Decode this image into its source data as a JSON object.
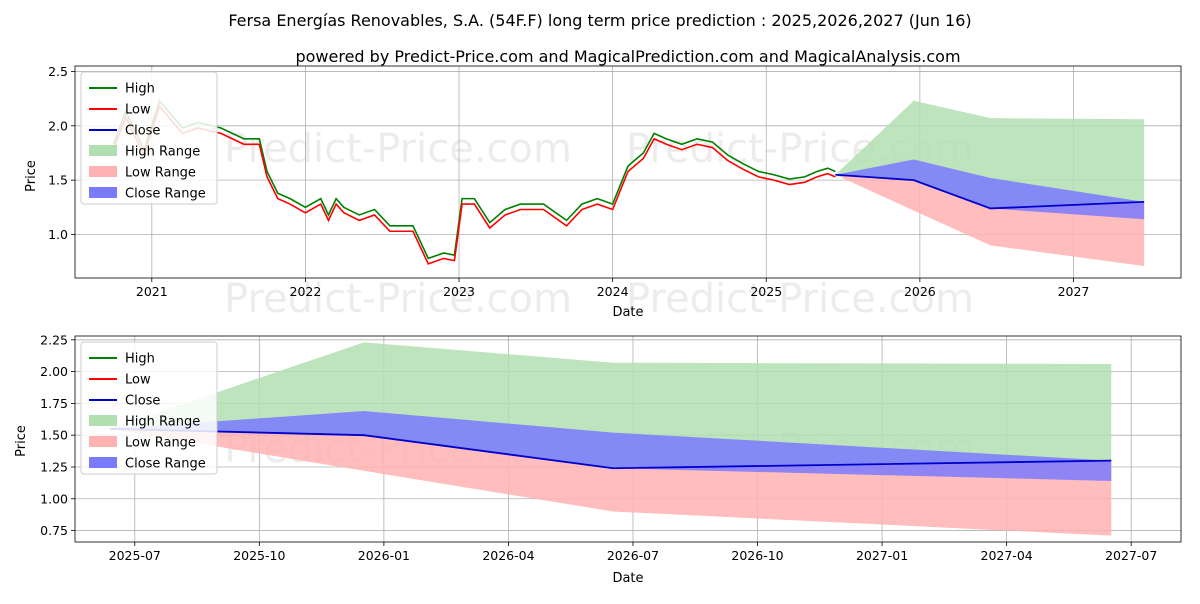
{
  "header": {
    "title": "Fersa Energías Renovables, S.A. (54F.F) long term price prediction : 2025,2026,2027 (Jun 16)",
    "subtitle": "powered by Predict-Price.com and MagicalPrediction.com and MagicalAnalysis.com"
  },
  "watermark": "Predict-Price.com",
  "legend": [
    "High",
    "Low",
    "Close",
    "High Range",
    "Low Range",
    "Close Range"
  ],
  "colors": {
    "high": "#008000",
    "low": "#ff0000",
    "close": "#0000cd",
    "high_range": "#b2dfb2",
    "low_range": "#ffb2b2",
    "close_range": "#7a7aff"
  },
  "chart_data": [
    {
      "type": "line",
      "title": "",
      "xlabel": "Date",
      "ylabel": "Price",
      "xlim": [
        2020.5,
        2027.7
      ],
      "ylim": [
        0.6,
        2.55
      ],
      "xticks": [
        2021,
        2022,
        2023,
        2024,
        2025,
        2026,
        2027
      ],
      "xtick_labels": [
        "2021",
        "2022",
        "2023",
        "2024",
        "2025",
        "2026",
        "2027"
      ],
      "yticks": [
        1.0,
        1.5,
        2.0,
        2.5
      ],
      "ytick_labels": [
        "1.0",
        "1.5",
        "2.0",
        "2.5"
      ],
      "grid": true,
      "legend_loc": "upper-left",
      "history": {
        "x": [
          2020.75,
          2020.83,
          2020.95,
          2021.05,
          2021.2,
          2021.3,
          2021.45,
          2021.6,
          2021.7,
          2021.75,
          2021.82,
          2021.9,
          2022.0,
          2022.1,
          2022.15,
          2022.2,
          2022.25,
          2022.35,
          2022.45,
          2022.55,
          2022.7,
          2022.8,
          2022.9,
          2022.97,
          2023.02,
          2023.1,
          2023.2,
          2023.3,
          2023.4,
          2023.55,
          2023.7,
          2023.8,
          2023.9,
          2024.0,
          2024.1,
          2024.2,
          2024.27,
          2024.35,
          2024.45,
          2024.55,
          2024.65,
          2024.75,
          2024.85,
          2024.95,
          2025.05,
          2025.15,
          2025.25,
          2025.33,
          2025.4,
          2025.45
        ],
        "close": [
          1.8,
          2.1,
          1.75,
          2.2,
          1.95,
          2.0,
          1.95,
          1.85,
          1.85,
          1.55,
          1.35,
          1.3,
          1.22,
          1.3,
          1.15,
          1.3,
          1.22,
          1.15,
          1.2,
          1.05,
          1.05,
          0.75,
          0.8,
          0.78,
          1.3,
          1.3,
          1.08,
          1.2,
          1.25,
          1.25,
          1.1,
          1.25,
          1.3,
          1.25,
          1.6,
          1.72,
          1.9,
          1.85,
          1.8,
          1.85,
          1.82,
          1.7,
          1.62,
          1.55,
          1.52,
          1.48,
          1.5,
          1.55,
          1.58,
          1.55
        ]
      },
      "forecast": {
        "x": [
          2025.45,
          2025.96,
          2026.46,
          2027.46
        ],
        "close": [
          1.55,
          1.5,
          1.24,
          1.3
        ],
        "high_range": [
          [
            1.55,
            1.55
          ],
          [
            1.5,
            2.23
          ],
          [
            1.24,
            2.07
          ],
          [
            1.3,
            2.06
          ]
        ],
        "low_range": [
          [
            1.55,
            1.55
          ],
          [
            1.22,
            1.5
          ],
          [
            0.9,
            1.24
          ],
          [
            0.71,
            1.3
          ]
        ],
        "close_range": [
          [
            1.55,
            1.55
          ],
          [
            1.5,
            1.69
          ],
          [
            1.24,
            1.52
          ],
          [
            1.14,
            1.3
          ]
        ]
      }
    },
    {
      "type": "line",
      "title": "",
      "xlabel": "Date",
      "ylabel": "Price",
      "xlim": [
        2025.38,
        2027.6
      ],
      "ylim": [
        0.66,
        2.28
      ],
      "xticks": [
        2025.5,
        2025.75,
        2026.0,
        2026.25,
        2026.5,
        2026.75,
        2027.0,
        2027.25,
        2027.5
      ],
      "xtick_labels": [
        "2025-07",
        "2025-10",
        "2026-01",
        "2026-04",
        "2026-07",
        "2026-10",
        "2027-01",
        "2027-04",
        "2027-07"
      ],
      "yticks": [
        0.75,
        1.0,
        1.25,
        1.5,
        1.75,
        2.0,
        2.25
      ],
      "ytick_labels": [
        "0.75",
        "1.00",
        "1.25",
        "1.50",
        "1.75",
        "2.00",
        "2.25"
      ],
      "grid": true,
      "legend_loc": "upper-left",
      "forecast": {
        "x": [
          2025.45,
          2025.96,
          2026.46,
          2027.46
        ],
        "close": [
          1.55,
          1.5,
          1.24,
          1.3
        ],
        "high_range": [
          [
            1.55,
            1.55
          ],
          [
            1.5,
            2.23
          ],
          [
            1.24,
            2.07
          ],
          [
            1.3,
            2.06
          ]
        ],
        "low_range": [
          [
            1.55,
            1.55
          ],
          [
            1.22,
            1.5
          ],
          [
            0.9,
            1.24
          ],
          [
            0.71,
            1.3
          ]
        ],
        "close_range": [
          [
            1.55,
            1.55
          ],
          [
            1.5,
            1.69
          ],
          [
            1.24,
            1.52
          ],
          [
            1.14,
            1.3
          ]
        ]
      }
    }
  ]
}
